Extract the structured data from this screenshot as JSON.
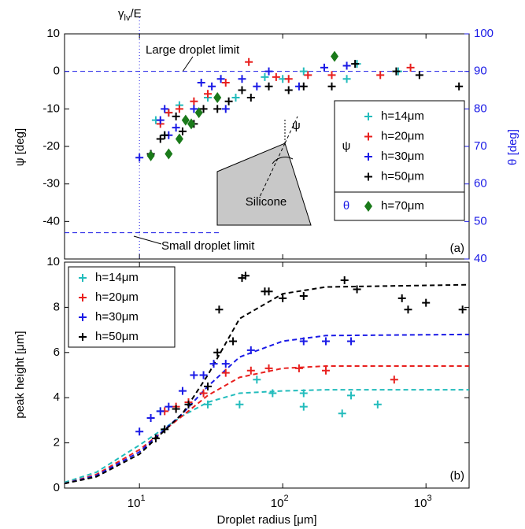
{
  "chart_data": [
    {
      "type": "scatter",
      "annotation_gamma": {
        "symbol": "γ",
        "sub": "lv",
        "rest": "/E"
      },
      "annotation_large": "Large droplet limit",
      "annotation_small": "Small droplet limit",
      "panel_label": "(a)",
      "y_label": "ψ [deg]",
      "y2_label": "θ [deg]",
      "y_symbol": "ψ",
      "y2_symbol": "θ",
      "inset_material": "Silicone",
      "inset_angle": "ψ",
      "gamma_r": 10,
      "large_limit": 0,
      "small_limit": -43,
      "xlim": [
        3,
        2000
      ],
      "log_x": true,
      "ylim": [
        -50,
        10
      ],
      "yticks": [
        -40,
        -30,
        -20,
        -10,
        0,
        10
      ],
      "y2lim": [
        40,
        100
      ],
      "y2ticks": [
        40,
        50,
        60,
        70,
        80,
        90,
        100
      ],
      "y2_color": "#1a1ae6",
      "series": [
        {
          "name": "h=14μm",
          "color": "#22bcbc",
          "values": [
            [
              13,
              -13
            ],
            [
              15,
              -17
            ],
            [
              16,
              -11
            ],
            [
              19,
              -9
            ],
            [
              30,
              -7
            ],
            [
              47,
              -7
            ],
            [
              75,
              -1.5
            ],
            [
              100,
              -2
            ],
            [
              140,
              0
            ],
            [
              280,
              -2
            ],
            [
              330,
              2
            ],
            [
              640,
              0
            ]
          ]
        },
        {
          "name": "h=20μm",
          "color": "#e8201e",
          "values": [
            [
              14,
              -14
            ],
            [
              16,
              -11
            ],
            [
              19,
              -10
            ],
            [
              24,
              -8
            ],
            [
              30,
              -6
            ],
            [
              40,
              -3
            ],
            [
              58,
              2.5
            ],
            [
              90,
              -1.5
            ],
            [
              110,
              -2
            ],
            [
              150,
              -1
            ],
            [
              220,
              -1
            ],
            [
              480,
              -1
            ],
            [
              780,
              1
            ]
          ]
        },
        {
          "name": "h=30μm",
          "color": "#1a1ae6",
          "values": [
            [
              10,
              -23
            ],
            [
              12,
              -22
            ],
            [
              14,
              -13
            ],
            [
              15,
              -10
            ],
            [
              16,
              -17
            ],
            [
              18,
              -15
            ],
            [
              24,
              -10
            ],
            [
              27,
              -3
            ],
            [
              32,
              -4
            ],
            [
              37,
              -2
            ],
            [
              40,
              -10
            ],
            [
              52,
              -2
            ],
            [
              66,
              -4
            ],
            [
              80,
              0
            ],
            [
              130,
              -4
            ],
            [
              195,
              1
            ],
            [
              280,
              1.5
            ]
          ]
        },
        {
          "name": "h=50μm",
          "color": "#000000",
          "values": [
            [
              12,
              -22
            ],
            [
              14,
              -18
            ],
            [
              15,
              -17
            ],
            [
              18,
              -12
            ],
            [
              20,
              -16
            ],
            [
              24,
              -14
            ],
            [
              28,
              -10
            ],
            [
              35,
              -10
            ],
            [
              42,
              -8
            ],
            [
              52,
              -5
            ],
            [
              60,
              -7
            ],
            [
              80,
              -4
            ],
            [
              110,
              -5
            ],
            [
              140,
              -4
            ],
            [
              220,
              -4
            ],
            [
              320,
              2
            ],
            [
              620,
              0
            ],
            [
              900,
              -1
            ],
            [
              1700,
              -4
            ]
          ]
        },
        {
          "name": "h=70μm",
          "color": "#1a7a1a",
          "axis": "y2",
          "marker": "diamond",
          "values": [
            [
              12,
              67.5
            ],
            [
              16,
              68
            ],
            [
              19,
              72
            ],
            [
              21,
              77
            ],
            [
              23,
              76
            ],
            [
              26,
              79
            ],
            [
              35,
              83
            ],
            [
              230,
              94
            ]
          ]
        }
      ]
    },
    {
      "type": "scatter",
      "panel_label": "(b)",
      "x_label": "Droplet radius [μm]",
      "y_label": "peak height [μm]",
      "xlim": [
        3,
        2000
      ],
      "log_x": true,
      "xticks": [
        {
          "value": 10,
          "label": "10",
          "exponent": "1"
        },
        {
          "value": 100,
          "label": "10",
          "exponent": "2"
        },
        {
          "value": 1000,
          "label": "10",
          "exponent": "3"
        }
      ],
      "ylim": [
        0,
        10
      ],
      "yticks": [
        0,
        2,
        4,
        6,
        8,
        10
      ],
      "series": [
        {
          "name": "h=14μm",
          "color": "#22bcbc",
          "values": [
            [
              14,
              3.4
            ],
            [
              30,
              3.7
            ],
            [
              50,
              3.7
            ],
            [
              66,
              4.8
            ],
            [
              85,
              4.2
            ],
            [
              140,
              3.6
            ],
            [
              140,
              4.2
            ],
            [
              260,
              3.3
            ],
            [
              300,
              4.1
            ],
            [
              460,
              3.7
            ]
          ]
        },
        {
          "name": "h=20μm",
          "color": "#e8201e",
          "values": [
            [
              15,
              3.4
            ],
            [
              18,
              3.6
            ],
            [
              22,
              3.8
            ],
            [
              28,
              4.2
            ],
            [
              40,
              5.1
            ],
            [
              60,
              5.2
            ],
            [
              80,
              5.3
            ],
            [
              130,
              5.3
            ],
            [
              200,
              5.2
            ],
            [
              600,
              4.8
            ]
          ]
        },
        {
          "name": "h=30μm",
          "color": "#1a1ae6",
          "values": [
            [
              10,
              2.5
            ],
            [
              12,
              3.1
            ],
            [
              14,
              3.4
            ],
            [
              16,
              3.6
            ],
            [
              20,
              4.3
            ],
            [
              24,
              5.0
            ],
            [
              28,
              5.0
            ],
            [
              33,
              5.5
            ],
            [
              40,
              5.5
            ],
            [
              60,
              6.1
            ],
            [
              140,
              6.5
            ],
            [
              200,
              6.5
            ],
            [
              300,
              6.5
            ]
          ]
        },
        {
          "name": "h=50μm",
          "color": "#000000",
          "values": [
            [
              13,
              2.2
            ],
            [
              15,
              2.6
            ],
            [
              18,
              3.5
            ],
            [
              22,
              3.7
            ],
            [
              30,
              4.5
            ],
            [
              35,
              6
            ],
            [
              36,
              7.9
            ],
            [
              45,
              6.5
            ],
            [
              52,
              9.3
            ],
            [
              55,
              9.4
            ],
            [
              75,
              8.7
            ],
            [
              80,
              8.7
            ],
            [
              100,
              8.4
            ],
            [
              140,
              8.5
            ],
            [
              270,
              9.2
            ],
            [
              330,
              8.8
            ],
            [
              680,
              8.4
            ],
            [
              750,
              7.9
            ],
            [
              1000,
              8.2
            ],
            [
              1800,
              7.9
            ]
          ]
        }
      ],
      "fit_x": [
        3,
        5,
        10,
        20,
        30,
        50,
        100,
        200,
        2000
      ],
      "fits": [
        {
          "color": "#22bcbc",
          "values": [
            0.25,
            0.7,
            1.9,
            3.2,
            3.8,
            4.2,
            4.3,
            4.35,
            4.35
          ]
        },
        {
          "color": "#e8201e",
          "values": [
            0.2,
            0.6,
            1.7,
            3.2,
            4.1,
            4.9,
            5.3,
            5.4,
            5.4
          ]
        },
        {
          "color": "#1a1ae6",
          "values": [
            0.2,
            0.55,
            1.6,
            3.3,
            4.5,
            5.8,
            6.5,
            6.75,
            6.8
          ]
        },
        {
          "color": "#000000",
          "values": [
            0.2,
            0.5,
            1.5,
            3.3,
            5.0,
            7.5,
            8.6,
            8.9,
            9.0
          ]
        }
      ]
    }
  ]
}
